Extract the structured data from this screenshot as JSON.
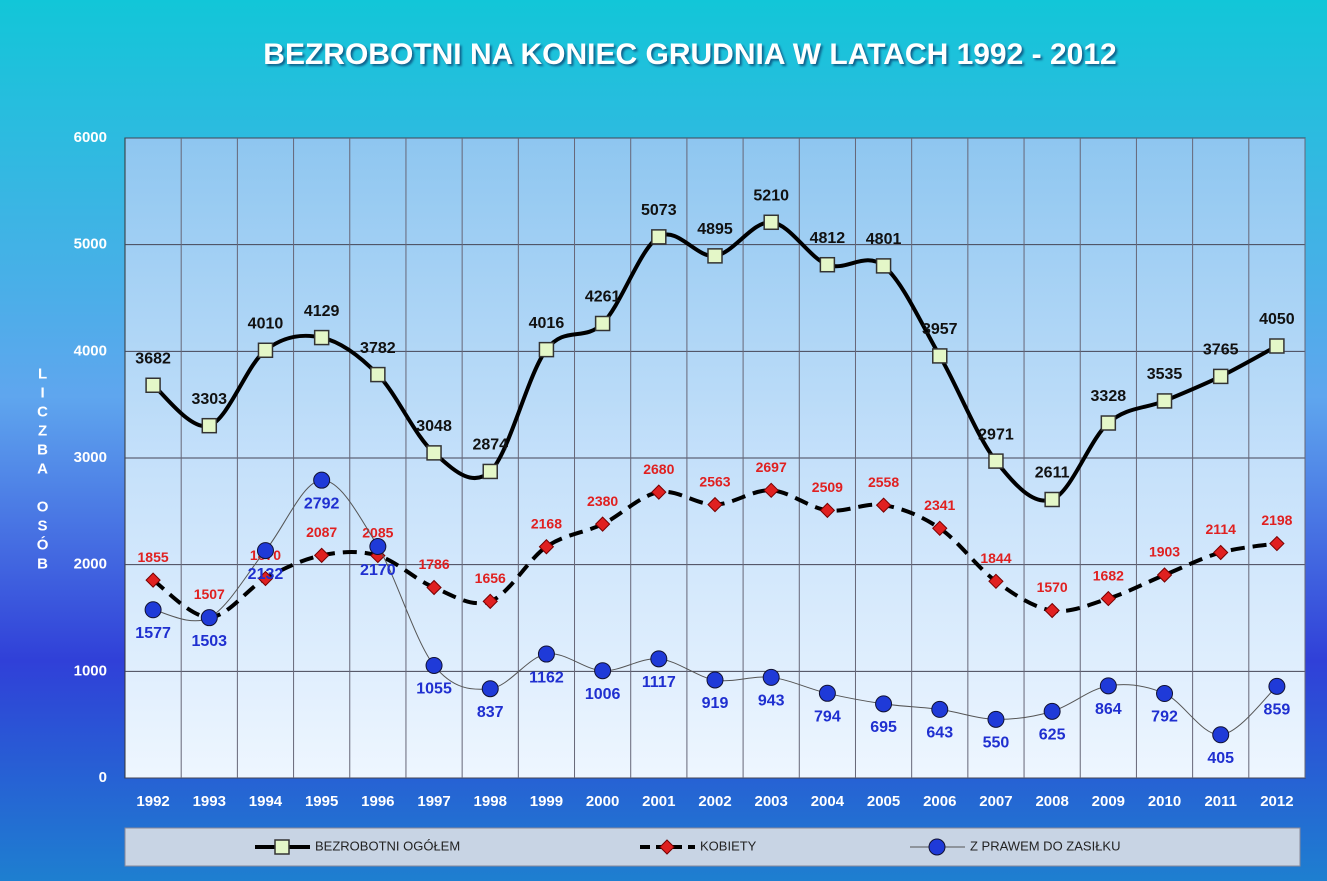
{
  "chart_data": {
    "type": "line",
    "title": "BEZROBOTNI NA KONIEC GRUDNIA W LATACH 1992 - 2012",
    "y_label": "LICZBA OSÓB",
    "categories": [
      "1992",
      "1993",
      "1994",
      "1995",
      "1996",
      "1997",
      "1998",
      "1999",
      "2000",
      "2001",
      "2002",
      "2003",
      "2004",
      "2005",
      "2006",
      "2007",
      "2008",
      "2009",
      "2010",
      "2011",
      "2012"
    ],
    "series": [
      {
        "name": "BEZROBOTNI OGÓŁEM",
        "color": "#000000",
        "marker": "square",
        "marker_color": "#e4f7c8",
        "label_color": "#111111",
        "values": [
          3682,
          3303,
          4010,
          4129,
          3782,
          3048,
          2874,
          4016,
          4261,
          5073,
          4895,
          5210,
          4812,
          4801,
          3957,
          2971,
          2611,
          3328,
          3535,
          3765,
          4050
        ]
      },
      {
        "name": "KOBIETY",
        "color": "#000000",
        "dash": true,
        "marker": "diamond",
        "marker_color": "#e02020",
        "label_color": "#e02020",
        "values": [
          1855,
          1507,
          1870,
          2087,
          2085,
          1786,
          1656,
          2168,
          2380,
          2680,
          2563,
          2697,
          2509,
          2558,
          2341,
          1844,
          1570,
          1682,
          1903,
          2114,
          2198
        ]
      },
      {
        "name": "Z PRAWEM DO ZASIŁKU",
        "color": "#555555",
        "thin": true,
        "marker": "circle",
        "marker_color": "#1f3ad8",
        "label_color": "#1f2fd0",
        "values": [
          1577,
          1503,
          2132,
          2792,
          2170,
          1055,
          837,
          1162,
          1006,
          1117,
          919,
          943,
          794,
          695,
          643,
          550,
          625,
          864,
          792,
          405,
          859
        ]
      }
    ],
    "ylim": [
      0,
      6000
    ],
    "yticks": [
      0,
      1000,
      2000,
      3000,
      4000,
      5000,
      6000
    ],
    "grid": true
  }
}
